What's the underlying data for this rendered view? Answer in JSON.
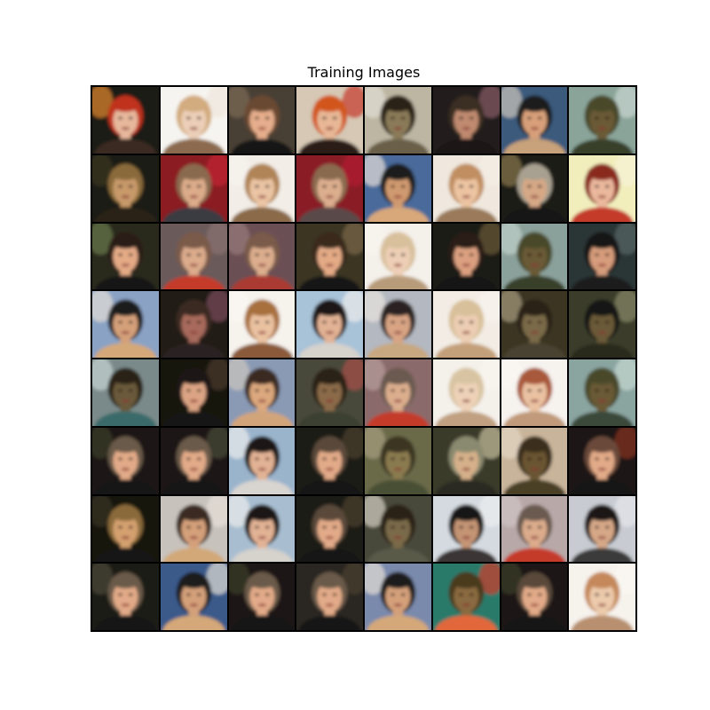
{
  "figure": {
    "title": "Training Images"
  },
  "grid": {
    "rows": 8,
    "cols": 8,
    "tiles": [
      {
        "bg": "#1c1a12",
        "skin": "#e7b89c",
        "hair": "#c0321c",
        "cloth": "#3a2a20",
        "accent": "#e58a30"
      },
      {
        "bg": "#f6f4f0",
        "skin": "#eccfb8",
        "hair": "#d2ab7e",
        "cloth": "#8c6a50",
        "accent": "#efe6dc"
      },
      {
        "bg": "#4a4034",
        "skin": "#e6ae8c",
        "hair": "#6a4a32",
        "cloth": "#161616",
        "accent": "#7c6a56"
      },
      {
        "bg": "#d6c8b4",
        "skin": "#e8b896",
        "hair": "#d2561c",
        "cloth": "#2a1e18",
        "accent": "#c4382a"
      },
      {
        "bg": "#bcb6a2",
        "skin": "#8a7a58",
        "hair": "#2a2418",
        "cloth": "#6a6048",
        "accent": "#e2ded6"
      },
      {
        "bg": "#221e1a",
        "skin": "#c08a70",
        "hair": "#3a2e24",
        "cloth": "#1c1614",
        "accent": "#8a5a6a"
      },
      {
        "bg": "#3a5a7c",
        "skin": "#d8a07a",
        "hair": "#1c1a1c",
        "cloth": "#c8a27a",
        "accent": "#cfc6bc"
      },
      {
        "bg": "#8aa49a",
        "skin": "#6a5a36",
        "hair": "#4a4a2c",
        "cloth": "#38402c",
        "accent": "#c8d6d0"
      },
      {
        "bg": "#1e1c14",
        "skin": "#c89a6a",
        "hair": "#8a6a3a",
        "cloth": "#2a2418",
        "accent": "#3a3424"
      },
      {
        "bg": "#8a1a24",
        "skin": "#dcac8a",
        "hair": "#8a6a50",
        "cloth": "#3a3a42",
        "accent": "#c22a34"
      },
      {
        "bg": "#f2ede6",
        "skin": "#eac4a4",
        "hair": "#b08456",
        "cloth": "#8a6a4a",
        "accent": "#f6f2ec"
      },
      {
        "bg": "#8a1e28",
        "skin": "#dcae8e",
        "hair": "#8a6a50",
        "cloth": "#5a4a4a",
        "accent": "#b22030"
      },
      {
        "bg": "#4a6a9a",
        "skin": "#d09a70",
        "hair": "#1c1a1c",
        "cloth": "#d8a87a",
        "accent": "#e6e0d8"
      },
      {
        "bg": "#f0e8de",
        "skin": "#ecc4a2",
        "hair": "#c08e60",
        "cloth": "#9a7a5a",
        "accent": "#f4eee6"
      },
      {
        "bg": "#1c1a16",
        "skin": "#d6a886",
        "hair": "#a8a090",
        "cloth": "#161616",
        "accent": "#8a7a50"
      },
      {
        "bg": "#f2eebc",
        "skin": "#eab89c",
        "hair": "#8a2a1c",
        "cloth": "#c43a2a",
        "accent": "#f6f2d6"
      },
      {
        "bg": "#2a2a1e",
        "skin": "#e4aa86",
        "hair": "#2a1e18",
        "cloth": "#161616",
        "accent": "#6a7a4a"
      },
      {
        "bg": "#6a5a5a",
        "skin": "#dcac8c",
        "hair": "#7a5a4a",
        "cloth": "#c43a2a",
        "accent": "#8a7070"
      },
      {
        "bg": "#6a5054",
        "skin": "#dcae8e",
        "hair": "#7a5a4a",
        "cloth": "#aa3a30",
        "accent": "#9a7a7a"
      },
      {
        "bg": "#3a3424",
        "skin": "#e4aa86",
        "hair": "#3a2a1e",
        "cloth": "#161616",
        "accent": "#7a6a4a"
      },
      {
        "bg": "#f4f0ea",
        "skin": "#eecfb6",
        "hair": "#d8c09c",
        "cloth": "#b89c7a",
        "accent": "#f8f4ee"
      },
      {
        "bg": "#1e1a16",
        "skin": "#dca080",
        "hair": "#2a1e18",
        "cloth": "#161616",
        "accent": "#6a5a3a"
      },
      {
        "bg": "#8aa09a",
        "skin": "#6a5a36",
        "hair": "#4a4a2c",
        "cloth": "#38402c",
        "accent": "#c0d0ca"
      },
      {
        "bg": "#2a3434",
        "skin": "#d69c7c",
        "hair": "#161414",
        "cloth": "#1a1a1a",
        "accent": "#5a6a6a"
      },
      {
        "bg": "#8aa2c4",
        "skin": "#d4a07a",
        "hair": "#1c1a1c",
        "cloth": "#d4a878",
        "accent": "#e4ded6"
      },
      {
        "bg": "#221c18",
        "skin": "#a86a5c",
        "hair": "#3a2a24",
        "cloth": "#2a2220",
        "accent": "#7a4a5a"
      },
      {
        "bg": "#f6f2ec",
        "skin": "#eac2a2",
        "hair": "#a8703e",
        "cloth": "#8a5a3a",
        "accent": "#fbf8f4"
      },
      {
        "bg": "#a8c2d8",
        "skin": "#e2b294",
        "hair": "#1a1618",
        "cloth": "#d6d2cc",
        "accent": "#ececec"
      },
      {
        "bg": "#b4b8c0",
        "skin": "#d8a484",
        "hair": "#2a2224",
        "cloth": "#c8a880",
        "accent": "#e8e4de"
      },
      {
        "bg": "#f2ece4",
        "skin": "#ecceb4",
        "hair": "#d8c09a",
        "cloth": "#c4a07a",
        "accent": "#f8f4ee"
      },
      {
        "bg": "#3a3424",
        "skin": "#7a6a48",
        "hair": "#2a2418",
        "cloth": "#4a4230",
        "accent": "#a89c80"
      },
      {
        "bg": "#3a3c2a",
        "skin": "#6a5a38",
        "hair": "#161614",
        "cloth": "#2a2a1c",
        "accent": "#8a8a6a"
      },
      {
        "bg": "#7a8a8a",
        "skin": "#6a5a3a",
        "hair": "#2a2418",
        "cloth": "#3a6a6a",
        "accent": "#c8d6d4"
      },
      {
        "bg": "#141210",
        "skin": "#dca484",
        "hair": "#1e1814",
        "cloth": "#141414",
        "accent": "#4a3a2a"
      },
      {
        "bg": "#8a9ab4",
        "skin": "#dca87e",
        "hair": "#3a2a24",
        "cloth": "#d2a47a",
        "accent": "#ccc6be"
      },
      {
        "bg": "#4a4a3a",
        "skin": "#8a6a48",
        "hair": "#2a2418",
        "cloth": "#3a4030",
        "accent": "#a8504a"
      },
      {
        "bg": "#8a6a6a",
        "skin": "#dcae8e",
        "hair": "#6a5a50",
        "cloth": "#c43a2a",
        "accent": "#b8a0a0"
      },
      {
        "bg": "#f4f0ea",
        "skin": "#eed2b8",
        "hair": "#d8c4a2",
        "cloth": "#c0a080",
        "accent": "#f8f4ee"
      },
      {
        "bg": "#f6f2ee",
        "skin": "#eac2a2",
        "hair": "#a8583a",
        "cloth": "#c09a7a",
        "accent": "#fbf8f4"
      },
      {
        "bg": "#8aa4a0",
        "skin": "#6a5a36",
        "hair": "#4a4a2c",
        "cloth": "#3a4a3a",
        "accent": "#c8d8d2"
      },
      {
        "bg": "#1a1814",
        "skin": "#e2aa88",
        "hair": "#6a5a4a",
        "cloth": "#161616",
        "accent": "#3a3a2a"
      },
      {
        "bg": "#1a1814",
        "skin": "#e2aa88",
        "hair": "#6a5a4a",
        "cloth": "#161616",
        "accent": "#4a4a3a"
      },
      {
        "bg": "#9ab4cc",
        "skin": "#e2b294",
        "hair": "#1a1618",
        "cloth": "#d8d4d0",
        "accent": "#ececec"
      },
      {
        "bg": "#1e1c16",
        "skin": "#e2aa88",
        "hair": "#5a4a3a",
        "cloth": "#161616",
        "accent": "#4a4030"
      },
      {
        "bg": "#6a6a4a",
        "skin": "#8a7a50",
        "hair": "#3a3424",
        "cloth": "#4a5034",
        "accent": "#a8a080"
      },
      {
        "bg": "#3a3a2a",
        "skin": "#d6b08a",
        "hair": "#8a8a70",
        "cloth": "#2a2a20",
        "accent": "#c8c0a0"
      },
      {
        "bg": "#c8b49a",
        "skin": "#6a5430",
        "hair": "#3a2e1c",
        "cloth": "#4a4028",
        "accent": "#e2d6c4"
      },
      {
        "bg": "#1a1814",
        "skin": "#e2aa88",
        "hair": "#6a4a3a",
        "cloth": "#161616",
        "accent": "#8a3020"
      },
      {
        "bg": "#141210",
        "skin": "#d4a070",
        "hair": "#8a6a3a",
        "cloth": "#161616",
        "accent": "#3a3424"
      },
      {
        "bg": "#c8c2bc",
        "skin": "#d4a07a",
        "hair": "#3a2a24",
        "cloth": "#d2a878",
        "accent": "#e6e0d8"
      },
      {
        "bg": "#a8bed0",
        "skin": "#e2b294",
        "hair": "#1a1618",
        "cloth": "#d6d2cc",
        "accent": "#ececec"
      },
      {
        "bg": "#1c1a16",
        "skin": "#e2aa88",
        "hair": "#5a4a3a",
        "cloth": "#161616",
        "accent": "#4a4030"
      },
      {
        "bg": "#4a4a3a",
        "skin": "#7a6a4a",
        "hair": "#2a2418",
        "cloth": "#5a5a4a",
        "accent": "#d6d0c4"
      },
      {
        "bg": "#d4dae0",
        "skin": "#c49474",
        "hair": "#161416",
        "cloth": "#3a3434",
        "accent": "#eceef0"
      },
      {
        "bg": "#b8a8a8",
        "skin": "#dcac8c",
        "hair": "#6a5a50",
        "cloth": "#c43a2a",
        "accent": "#d0c4c4"
      },
      {
        "bg": "#c8ccd2",
        "skin": "#d6a888",
        "hair": "#1a1618",
        "cloth": "#3a3a3a",
        "accent": "#e4e6ea"
      },
      {
        "bg": "#1c1a14",
        "skin": "#e2aa88",
        "hair": "#6a5a4a",
        "cloth": "#161616",
        "accent": "#4a4a3a"
      },
      {
        "bg": "#3a5a8a",
        "skin": "#d4a07a",
        "hair": "#1c1a1c",
        "cloth": "#d4a878",
        "accent": "#e4ded6"
      },
      {
        "bg": "#1a1814",
        "skin": "#e2aa88",
        "hair": "#6a5a4a",
        "cloth": "#161616",
        "accent": "#3a3a2a"
      },
      {
        "bg": "#2a2620",
        "skin": "#e2aa88",
        "hair": "#6a5a4a",
        "cloth": "#161616",
        "accent": "#4a4030"
      },
      {
        "bg": "#7a8aac",
        "skin": "#d4a07a",
        "hair": "#1c1a1c",
        "cloth": "#d4a878",
        "accent": "#e4ded6"
      },
      {
        "bg": "#2a7a6a",
        "skin": "#8a6a40",
        "hair": "#4a3a1c",
        "cloth": "#e2683a",
        "accent": "#d23a2a"
      },
      {
        "bg": "#1a1814",
        "skin": "#e2aa88",
        "hair": "#5a4a3a",
        "cloth": "#161616",
        "accent": "#3a3a2a"
      },
      {
        "bg": "#f6f2ec",
        "skin": "#eccaac",
        "hair": "#c4885a",
        "cloth": "#b89070",
        "accent": "#fbf8f4"
      }
    ]
  }
}
